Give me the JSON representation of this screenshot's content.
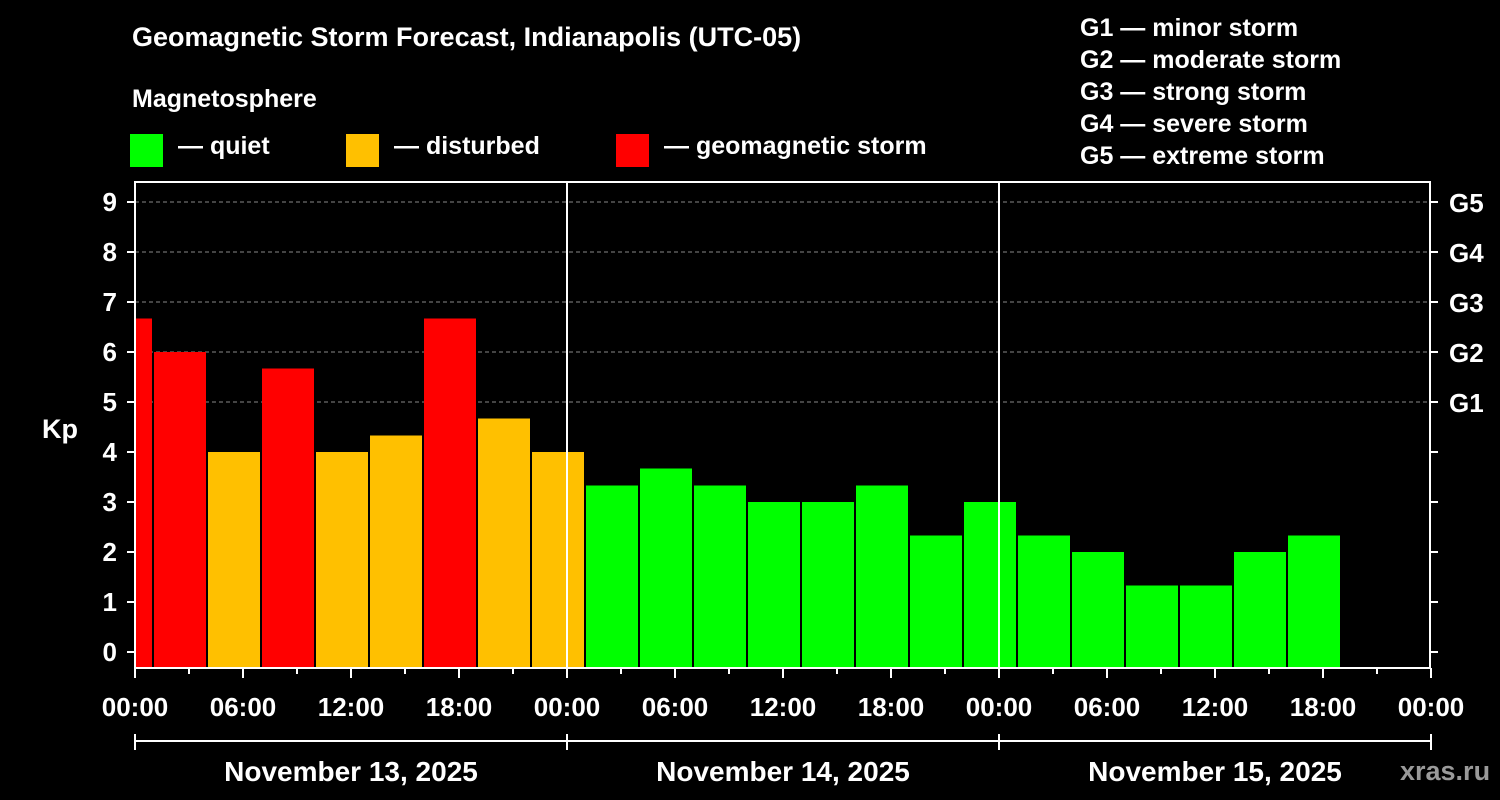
{
  "title": "Geomagnetic Storm Forecast, Indianapolis (UTC-05)",
  "legend": {
    "heading": "Magnetosphere",
    "items": [
      {
        "label": "— quiet",
        "color": "#00ff00"
      },
      {
        "label": "— disturbed",
        "color": "#ffc000"
      },
      {
        "label": "— geomagnetic storm",
        "color": "#ff0000"
      }
    ]
  },
  "storm_levels": [
    "G1 — minor storm",
    "G2 — moderate storm",
    "G3 — strong storm",
    "G4 — severe storm",
    "G5 — extreme storm"
  ],
  "watermark": "xras.ru",
  "chart_data": {
    "type": "bar",
    "ylabel": "Kp",
    "ylim": [
      0,
      9
    ],
    "y_ticks": [
      "0",
      "1",
      "2",
      "3",
      "4",
      "5",
      "6",
      "7",
      "8",
      "9"
    ],
    "right_axis_labels": [
      {
        "kp": 5,
        "label": "G1"
      },
      {
        "kp": 6,
        "label": "G2"
      },
      {
        "kp": 7,
        "label": "G3"
      },
      {
        "kp": 8,
        "label": "G4"
      },
      {
        "kp": 9,
        "label": "G5"
      }
    ],
    "x_range_hours": [
      0,
      72
    ],
    "x_tick_labels": [
      "00:00",
      "06:00",
      "12:00",
      "18:00",
      "00:00",
      "06:00",
      "12:00",
      "18:00",
      "00:00",
      "06:00",
      "12:00",
      "18:00",
      "00:00"
    ],
    "days": [
      "November 13, 2025",
      "November 14, 2025",
      "November 15, 2025"
    ],
    "colors": {
      "quiet": "#00ff00",
      "disturbed": "#ffc000",
      "storm": "#ff0000"
    },
    "bars": [
      {
        "start": 0,
        "end": 1,
        "kp": 6.67,
        "level": "storm"
      },
      {
        "start": 1,
        "end": 4,
        "kp": 6.0,
        "level": "storm"
      },
      {
        "start": 4,
        "end": 7,
        "kp": 4.0,
        "level": "disturbed"
      },
      {
        "start": 7,
        "end": 10,
        "kp": 5.67,
        "level": "storm"
      },
      {
        "start": 10,
        "end": 13,
        "kp": 4.0,
        "level": "disturbed"
      },
      {
        "start": 13,
        "end": 16,
        "kp": 4.33,
        "level": "disturbed"
      },
      {
        "start": 16,
        "end": 19,
        "kp": 6.67,
        "level": "storm"
      },
      {
        "start": 19,
        "end": 22,
        "kp": 4.67,
        "level": "disturbed"
      },
      {
        "start": 22,
        "end": 25,
        "kp": 4.0,
        "level": "disturbed"
      },
      {
        "start": 25,
        "end": 28,
        "kp": 3.33,
        "level": "quiet"
      },
      {
        "start": 28,
        "end": 31,
        "kp": 3.67,
        "level": "quiet"
      },
      {
        "start": 31,
        "end": 34,
        "kp": 3.33,
        "level": "quiet"
      },
      {
        "start": 34,
        "end": 37,
        "kp": 3.0,
        "level": "quiet"
      },
      {
        "start": 37,
        "end": 40,
        "kp": 3.0,
        "level": "quiet"
      },
      {
        "start": 40,
        "end": 43,
        "kp": 3.33,
        "level": "quiet"
      },
      {
        "start": 43,
        "end": 46,
        "kp": 2.33,
        "level": "quiet"
      },
      {
        "start": 46,
        "end": 49,
        "kp": 3.0,
        "level": "quiet"
      },
      {
        "start": 49,
        "end": 52,
        "kp": 2.33,
        "level": "quiet"
      },
      {
        "start": 52,
        "end": 55,
        "kp": 2.0,
        "level": "quiet"
      },
      {
        "start": 55,
        "end": 58,
        "kp": 1.33,
        "level": "quiet"
      },
      {
        "start": 58,
        "end": 61,
        "kp": 1.33,
        "level": "quiet"
      },
      {
        "start": 61,
        "end": 64,
        "kp": 2.0,
        "level": "quiet"
      },
      {
        "start": 64,
        "end": 67,
        "kp": 2.33,
        "level": "quiet"
      }
    ]
  }
}
